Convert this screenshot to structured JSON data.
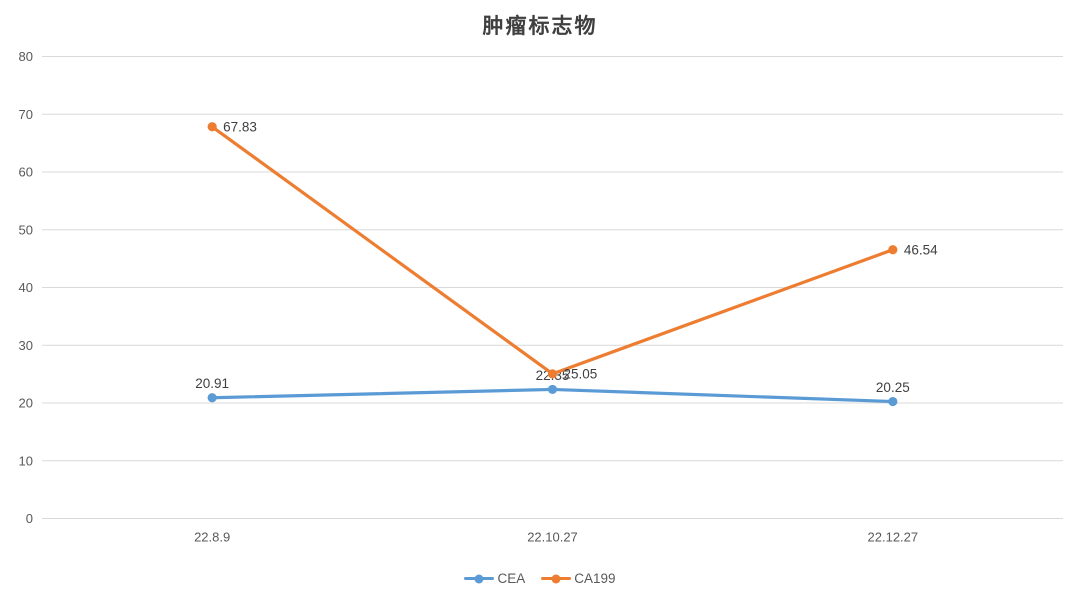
{
  "chart_data": {
    "type": "line",
    "title": "肿瘤标志物",
    "categories": [
      "22.8.9",
      "22.10.27",
      "22.12.27"
    ],
    "series": [
      {
        "name": "CEA",
        "values": [
          20.91,
          22.35,
          20.25
        ],
        "color": "#5B9BD5",
        "label_position": "above"
      },
      {
        "name": "CA199",
        "values": [
          67.83,
          25.05,
          46.54
        ],
        "color": "#ED7D31",
        "label_position": "right"
      }
    ],
    "xlabel": "",
    "ylabel": "",
    "ylim": [
      0,
      80
    ],
    "ytick_step": 10,
    "grid": true,
    "legend_position": "bottom",
    "colors": {
      "gridline": "#D9D9D9",
      "tick_label": "#595959",
      "data_label": "#404040",
      "title": "#3F3F3F",
      "background": "#FFFFFF"
    }
  }
}
